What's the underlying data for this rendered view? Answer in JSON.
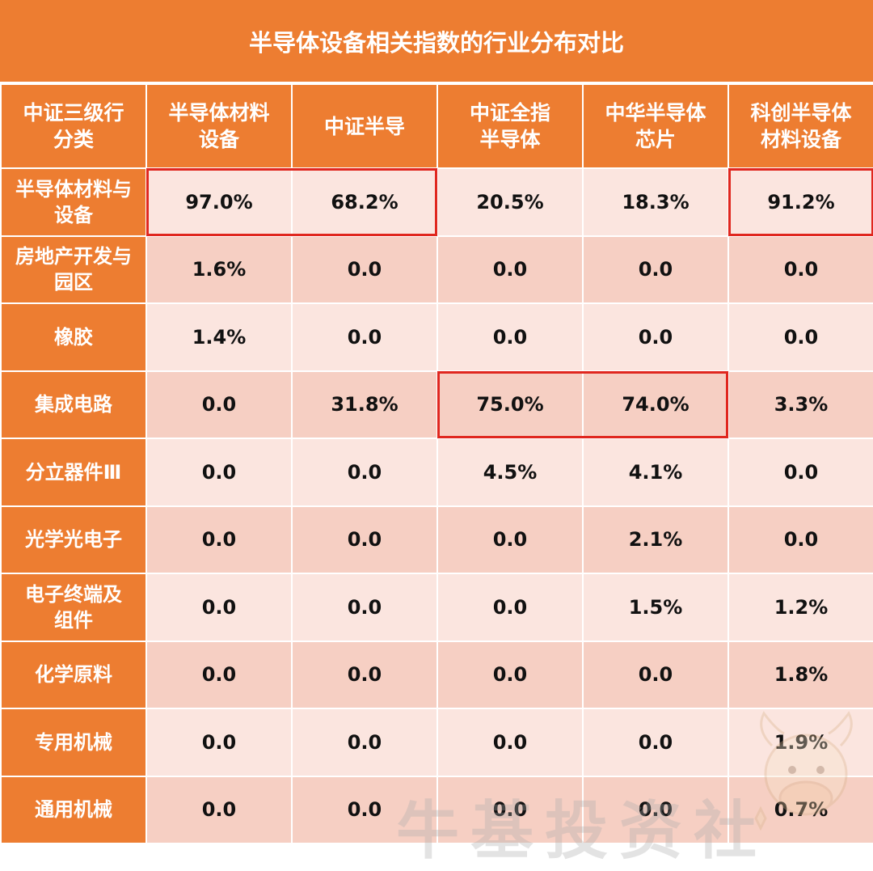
{
  "title": "半导体设备相关指数的行业分布对比",
  "chart_data": {
    "type": "table",
    "title": "半导体设备相关指数的行业分布对比",
    "columns": [
      "中证三级行分类",
      "半导体材料设备",
      "中证半导",
      "中证全指半导体",
      "中华半导体芯片",
      "科创半导体材料设备"
    ],
    "header_lines": [
      [
        "中证三级行",
        "分类"
      ],
      [
        "半导体材料",
        "设备"
      ],
      [
        "中证半导"
      ],
      [
        "中证全指",
        "半导体"
      ],
      [
        "中华半导体",
        "芯片"
      ],
      [
        "科创半导体",
        "材料设备"
      ]
    ],
    "rows": [
      {
        "category_lines": [
          "半导体材料与",
          "设备"
        ],
        "values": [
          "97.0%",
          "68.2%",
          "20.5%",
          "18.3%",
          "91.2%"
        ]
      },
      {
        "category_lines": [
          "房地产开发与",
          "园区"
        ],
        "values": [
          "1.6%",
          "0.0",
          "0.0",
          "0.0",
          "0.0"
        ]
      },
      {
        "category_lines": [
          "橡胶"
        ],
        "values": [
          "1.4%",
          "0.0",
          "0.0",
          "0.0",
          "0.0"
        ]
      },
      {
        "category_lines": [
          "集成电路"
        ],
        "values": [
          "0.0",
          "31.8%",
          "75.0%",
          "74.0%",
          "3.3%"
        ]
      },
      {
        "category_lines": [
          "分立器件Ⅲ"
        ],
        "values": [
          "0.0",
          "0.0",
          "4.5%",
          "4.1%",
          "0.0"
        ]
      },
      {
        "category_lines": [
          "光学光电子"
        ],
        "values": [
          "0.0",
          "0.0",
          "0.0",
          "2.1%",
          "0.0"
        ]
      },
      {
        "category_lines": [
          "电子终端及",
          "组件"
        ],
        "values": [
          "0.0",
          "0.0",
          "0.0",
          "1.5%",
          "1.2%"
        ]
      },
      {
        "category_lines": [
          "化学原料"
        ],
        "values": [
          "0.0",
          "0.0",
          "0.0",
          "0.0",
          "1.8%"
        ]
      },
      {
        "category_lines": [
          "专用机械"
        ],
        "values": [
          "0.0",
          "0.0",
          "0.0",
          "0.0",
          "1.9%"
        ]
      },
      {
        "category_lines": [
          "通用机械"
        ],
        "values": [
          "0.0",
          "0.0",
          "0.0",
          "0.0",
          "0.7%"
        ]
      }
    ],
    "highlighted_cells": [
      {
        "row": 0,
        "from_col": 0,
        "to_col": 1
      },
      {
        "row": 0,
        "from_col": 4,
        "to_col": 4
      },
      {
        "row": 3,
        "from_col": 2,
        "to_col": 3
      }
    ],
    "colors": {
      "header": "#ED7D31",
      "row_light": "#FBE5DF",
      "row_dark": "#F6CFC3",
      "highlight": "#E0271F"
    }
  },
  "watermark": "牛基投资社"
}
